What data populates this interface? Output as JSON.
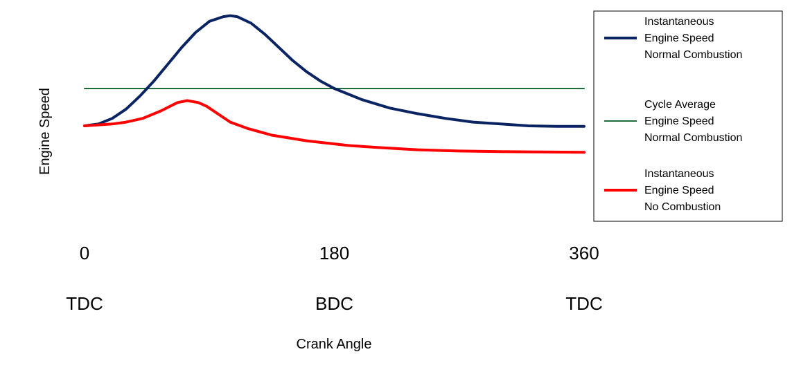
{
  "chart_data": {
    "type": "line",
    "title": "",
    "xlabel": "Crank Angle",
    "ylabel": "Engine Speed",
    "xlim": [
      0,
      360
    ],
    "ylim": [
      0,
      1
    ],
    "grid": false,
    "legend_position": "right",
    "x_ticks": [
      {
        "value": 0,
        "label": "0",
        "position_label": "TDC"
      },
      {
        "value": 180,
        "label": "180",
        "position_label": "BDC"
      },
      {
        "value": 360,
        "label": "360",
        "position_label": "TDC"
      }
    ],
    "series": [
      {
        "name": "Instantaneous Engine Speed Normal Combustion",
        "legend_lines": [
          "Instantaneous",
          "Engine Speed",
          "Normal Combustion"
        ],
        "color": "#0a2463",
        "x": [
          0,
          10,
          20,
          30,
          40,
          50,
          60,
          70,
          80,
          90,
          100,
          105,
          110,
          120,
          130,
          140,
          150,
          160,
          170,
          180,
          200,
          220,
          240,
          260,
          280,
          300,
          320,
          340,
          360
        ],
        "y": [
          0.4,
          0.41,
          0.44,
          0.49,
          0.56,
          0.64,
          0.73,
          0.82,
          0.9,
          0.96,
          0.985,
          0.99,
          0.985,
          0.95,
          0.89,
          0.82,
          0.75,
          0.69,
          0.64,
          0.6,
          0.54,
          0.495,
          0.465,
          0.44,
          0.42,
          0.41,
          0.4,
          0.397,
          0.397
        ]
      },
      {
        "name": "Cycle Average Engine Speed Normal Combustion",
        "legend_lines": [
          "Cycle Average",
          "Engine Speed",
          "Normal Combustion"
        ],
        "color": "#1e6b3a",
        "x": [
          0,
          360
        ],
        "y": [
          0.6,
          0.6
        ]
      },
      {
        "name": "Instantaneous Engine Speed No Combustion",
        "legend_lines": [
          "Instantaneous",
          "Engine Speed",
          "No Combustion"
        ],
        "color": "#ff0000",
        "x": [
          0,
          10,
          20,
          30,
          42,
          55,
          67,
          74,
          82,
          88,
          105,
          118,
          135,
          160,
          190,
          210,
          240,
          270,
          300,
          330,
          360
        ],
        "y": [
          0.4,
          0.405,
          0.41,
          0.42,
          0.44,
          0.48,
          0.525,
          0.535,
          0.525,
          0.505,
          0.42,
          0.385,
          0.35,
          0.32,
          0.295,
          0.285,
          0.272,
          0.265,
          0.262,
          0.26,
          0.258
        ]
      }
    ]
  }
}
